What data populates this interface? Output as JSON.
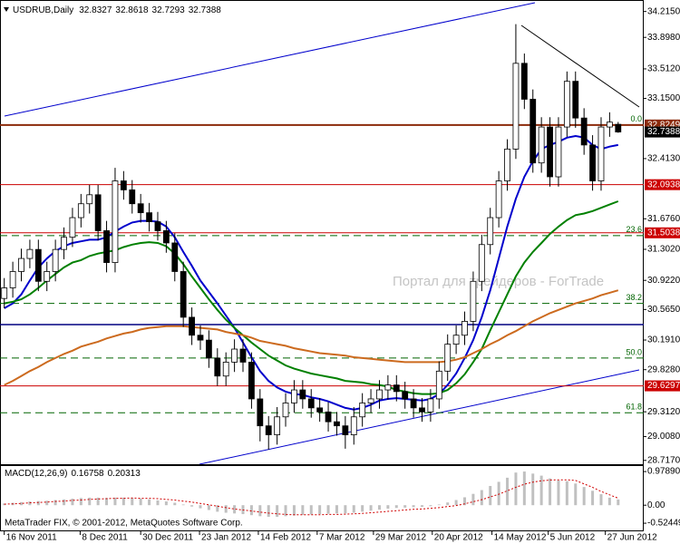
{
  "header": {
    "symbol": "USDRUB,Daily"
  },
  "chart_data": {
    "type": "candlestick",
    "xlim": [
      -0.5,
      75
    ],
    "xticks": [
      {
        "value": 0,
        "label": "16 Nov 2011"
      },
      {
        "value": 8.9,
        "label": "8 Dec 2011"
      },
      {
        "value": 16,
        "label": "30 Dec 2011"
      },
      {
        "value": 22.9,
        "label": "23 Jan 2012"
      },
      {
        "value": 29.8,
        "label": "14 Feb 2012"
      },
      {
        "value": 36.7,
        "label": "7 Mar 2012"
      },
      {
        "value": 43.3,
        "label": "29 Mar 2012"
      },
      {
        "value": 50.2,
        "label": "20 Apr 2012"
      },
      {
        "value": 57.2,
        "label": "14 May 2012"
      },
      {
        "value": 63.8,
        "label": "5 Jun 2012"
      },
      {
        "value": 70.5,
        "label": "27 Jun 2012"
      }
    ],
    "ylim": [
      28.67,
      34.3
    ],
    "yticks": [
      {
        "value": 34.215,
        "label": "34.2150"
      },
      {
        "value": 33.898,
        "label": "33.8980"
      },
      {
        "value": 33.512,
        "label": "33.5120"
      },
      {
        "value": 33.15,
        "label": "33.1500"
      },
      {
        "value": 32.413,
        "label": "32.4130"
      },
      {
        "value": 31.676,
        "label": "31.6760"
      },
      {
        "value": 31.302,
        "label": "31.3020"
      },
      {
        "value": 30.922,
        "label": "30.9220"
      },
      {
        "value": 30.565,
        "label": "30.5650"
      },
      {
        "value": 30.191,
        "label": "30.1910"
      },
      {
        "value": 29.828,
        "label": "29.8280"
      },
      {
        "value": 29.312,
        "label": "29.3120"
      },
      {
        "value": 29.008,
        "label": "29.0080"
      },
      {
        "value": 28.717,
        "label": "28.7170"
      }
    ],
    "up_color": "#ffffff",
    "down_color": "#000000",
    "open": [
      30.7,
      30.83,
      31.03,
      31.19,
      31.3,
      30.91,
      31.03,
      31.3,
      31.45,
      31.69,
      31.86,
      31.97,
      31.53,
      31.14,
      32.14,
      32.03,
      31.86,
      31.75,
      31.64,
      31.53,
      31.38,
      31.03,
      30.47,
      30.25,
      30.19,
      29.97,
      29.75,
      29.92,
      30.08,
      29.92,
      29.47,
      29.14,
      29.03,
      29.25,
      29.42,
      29.58,
      29.47,
      29.36,
      29.31,
      29.19,
      29.14,
      29.03,
      29.25,
      29.42,
      29.47,
      29.58,
      29.64,
      29.56,
      29.47,
      29.36,
      29.31,
      29.47,
      29.81,
      30.14,
      30.25,
      30.42,
      30.91,
      31.36,
      31.69,
      32.14,
      32.53,
      33.58,
      33.14,
      32.36,
      32.8,
      32.19,
      32.8,
      33.36,
      32.91,
      32.58,
      32.14,
      32.8,
      32.8327
    ],
    "high": [
      30.95,
      31.15,
      31.31,
      31.42,
      31.42,
      31.15,
      31.42,
      31.57,
      31.81,
      31.98,
      32.09,
      32.09,
      31.65,
      32.3,
      32.26,
      32.15,
      31.98,
      31.87,
      31.76,
      31.65,
      31.5,
      31.15,
      30.59,
      30.37,
      30.31,
      30.09,
      30.04,
      30.2,
      30.2,
      30.04,
      29.59,
      29.26,
      29.37,
      29.54,
      29.7,
      29.7,
      29.59,
      29.48,
      29.43,
      29.31,
      29.26,
      29.37,
      29.54,
      29.59,
      29.7,
      29.76,
      29.76,
      29.68,
      29.59,
      29.48,
      29.59,
      29.93,
      30.26,
      30.37,
      30.54,
      31.03,
      31.48,
      31.81,
      32.26,
      32.65,
      34.06,
      33.7,
      33.26,
      32.92,
      32.92,
      32.92,
      33.48,
      33.48,
      33.03,
      32.7,
      32.92,
      32.98,
      32.8618
    ],
    "low": [
      30.58,
      30.71,
      30.91,
      31.07,
      30.79,
      30.79,
      30.91,
      31.18,
      31.33,
      31.57,
      31.74,
      31.41,
      31.02,
      31.02,
      31.91,
      31.74,
      31.63,
      31.52,
      31.41,
      31.26,
      30.91,
      30.35,
      30.13,
      30.07,
      29.85,
      29.63,
      29.63,
      29.8,
      29.8,
      29.35,
      28.95,
      28.85,
      28.91,
      29.13,
      29.3,
      29.35,
      29.24,
      29.19,
      29.07,
      29.02,
      28.86,
      28.91,
      29.13,
      29.3,
      29.35,
      29.46,
      29.44,
      29.35,
      29.24,
      29.19,
      29.19,
      29.35,
      29.69,
      30.02,
      30.13,
      30.3,
      30.79,
      31.24,
      31.57,
      32.02,
      32.41,
      33.02,
      32.24,
      32.24,
      32.07,
      32.07,
      32.68,
      32.79,
      32.46,
      32.02,
      32.02,
      32.68,
      32.7293
    ],
    "close": [
      30.83,
      31.03,
      31.19,
      31.3,
      30.91,
      31.03,
      31.3,
      31.45,
      31.69,
      31.86,
      31.97,
      31.53,
      31.14,
      32.14,
      32.03,
      31.86,
      31.75,
      31.64,
      31.53,
      31.38,
      31.03,
      30.47,
      30.25,
      30.19,
      29.97,
      29.75,
      29.92,
      30.08,
      29.92,
      29.47,
      29.14,
      29.03,
      29.25,
      29.42,
      29.58,
      29.47,
      29.36,
      29.31,
      29.19,
      29.14,
      29.03,
      29.25,
      29.42,
      29.47,
      29.58,
      29.64,
      29.56,
      29.47,
      29.36,
      29.31,
      29.47,
      29.81,
      30.14,
      30.25,
      30.42,
      30.91,
      31.36,
      31.69,
      32.14,
      32.53,
      33.58,
      33.14,
      32.36,
      32.8,
      32.19,
      32.8,
      33.36,
      32.91,
      32.58,
      32.14,
      32.8,
      32.86,
      32.7388
    ],
    "series": [
      {
        "color": "#0000cc",
        "values": [
          30.58,
          30.64,
          30.75,
          30.92,
          31.08,
          31.19,
          31.28,
          31.34,
          31.38,
          31.4,
          31.42,
          31.42,
          31.45,
          31.52,
          31.58,
          31.63,
          31.65,
          31.65,
          31.64,
          31.58,
          31.45,
          31.27,
          31.1,
          30.92,
          30.78,
          30.64,
          30.49,
          30.34,
          30.16,
          29.98,
          29.81,
          29.69,
          29.61,
          29.56,
          29.53,
          29.52,
          29.49,
          29.47,
          29.44,
          29.4,
          29.36,
          29.34,
          29.36,
          29.4,
          29.45,
          29.47,
          29.48,
          29.47,
          29.46,
          29.45,
          29.47,
          29.53,
          29.64,
          29.78,
          29.97,
          30.19,
          30.47,
          30.8,
          31.19,
          31.58,
          31.92,
          32.19,
          32.38,
          32.53,
          32.58,
          32.62,
          32.67,
          32.69,
          32.67,
          32.58,
          32.53,
          32.56,
          32.58
        ]
      },
      {
        "color": "#008000",
        "values": [
          30.64,
          30.66,
          30.69,
          30.75,
          30.83,
          30.92,
          31.0,
          31.08,
          31.14,
          31.17,
          31.22,
          31.25,
          31.27,
          31.29,
          31.33,
          31.36,
          31.38,
          31.39,
          31.38,
          31.34,
          31.25,
          31.12,
          30.97,
          30.83,
          30.69,
          30.56,
          30.44,
          30.34,
          30.25,
          30.16,
          30.08,
          30.0,
          29.94,
          29.88,
          29.84,
          29.81,
          29.78,
          29.76,
          29.74,
          29.72,
          29.69,
          29.68,
          29.67,
          29.65,
          29.64,
          29.62,
          29.58,
          29.56,
          29.54,
          29.53,
          29.53,
          29.54,
          29.58,
          29.66,
          29.77,
          29.92,
          30.08,
          30.31,
          30.53,
          30.75,
          30.97,
          31.14,
          31.27,
          31.38,
          31.49,
          31.58,
          31.66,
          31.72,
          31.74,
          31.77,
          31.81,
          31.85,
          31.89
        ]
      },
      {
        "color": "#cc6a1e",
        "values": [
          29.64,
          29.69,
          29.75,
          29.81,
          29.86,
          29.92,
          29.97,
          30.02,
          30.06,
          30.11,
          30.14,
          30.17,
          30.21,
          30.24,
          30.27,
          30.29,
          30.32,
          30.34,
          30.35,
          30.36,
          30.36,
          30.36,
          30.35,
          30.34,
          30.33,
          30.32,
          30.29,
          30.27,
          30.25,
          30.22,
          30.18,
          30.16,
          30.14,
          30.12,
          30.09,
          30.07,
          30.05,
          30.03,
          30.02,
          30.01,
          30.0,
          29.98,
          29.97,
          29.96,
          29.95,
          29.94,
          29.93,
          29.92,
          29.92,
          29.92,
          29.92,
          29.92,
          29.93,
          29.95,
          29.98,
          30.03,
          30.08,
          30.14,
          30.19,
          30.25,
          30.3,
          30.36,
          30.42,
          30.47,
          30.52,
          30.56,
          30.6,
          30.64,
          30.67,
          30.7,
          30.74,
          30.77,
          30.8
        ]
      }
    ],
    "levels": [
      {
        "value": 32.8249,
        "color": "#8b2a0a"
      },
      {
        "value": 32.0938,
        "color": "#cc0000"
      },
      {
        "value": 31.5038,
        "color": "#cc0000"
      },
      {
        "value": 29.6297,
        "color": "#cc0000"
      }
    ],
    "support": {
      "value": 30.38,
      "color": "#000080"
    },
    "fib": [
      {
        "label": "0.0",
        "value": 32.8249
      },
      {
        "label": "23.6",
        "value": 31.47
      },
      {
        "label": "38.2",
        "value": 30.64
      },
      {
        "label": "50.0",
        "value": 29.97
      },
      {
        "label": "61.8",
        "value": 29.3
      }
    ],
    "fib_color": "#006400",
    "watermark": "Портал для трейдеров - ForTrade",
    "macd": {
      "title": "MACD(12,26,9)",
      "ylim": [
        -0.76,
        1.14
      ],
      "yticks": [
        {
          "value": 0.9789,
          "label": "0.97890"
        },
        {
          "value": 0,
          "label": "0.00"
        },
        {
          "value": -0.52449,
          "label": "-0.52449"
        }
      ],
      "hist_color": "#c0c0c0",
      "signal_color": "#d00000",
      "hist": [
        0.05,
        0.07,
        0.09,
        0.11,
        0.12,
        0.13,
        0.15,
        0.17,
        0.19,
        0.21,
        0.22,
        0.22,
        0.21,
        0.22,
        0.22,
        0.21,
        0.19,
        0.17,
        0.14,
        0.11,
        0.07,
        0.02,
        -0.04,
        -0.09,
        -0.14,
        -0.19,
        -0.22,
        -0.24,
        -0.26,
        -0.29,
        -0.32,
        -0.34,
        -0.34,
        -0.32,
        -0.3,
        -0.28,
        -0.27,
        -0.26,
        -0.25,
        -0.24,
        -0.24,
        -0.22,
        -0.19,
        -0.16,
        -0.13,
        -0.1,
        -0.08,
        -0.07,
        -0.06,
        -0.05,
        -0.03,
        0.02,
        0.08,
        0.15,
        0.23,
        0.33,
        0.44,
        0.56,
        0.68,
        0.8,
        0.95,
        0.98,
        0.92,
        0.86,
        0.78,
        0.72,
        0.7,
        0.63,
        0.53,
        0.42,
        0.32,
        0.22,
        0.16758
      ],
      "signal": [
        0.03,
        0.04,
        0.05,
        0.07,
        0.08,
        0.09,
        0.11,
        0.12,
        0.14,
        0.15,
        0.17,
        0.18,
        0.19,
        0.2,
        0.2,
        0.21,
        0.2,
        0.2,
        0.19,
        0.17,
        0.15,
        0.12,
        0.09,
        0.05,
        0.01,
        -0.03,
        -0.07,
        -0.11,
        -0.14,
        -0.17,
        -0.2,
        -0.23,
        -0.25,
        -0.27,
        -0.28,
        -0.28,
        -0.28,
        -0.28,
        -0.27,
        -0.27,
        -0.26,
        -0.25,
        -0.24,
        -0.22,
        -0.2,
        -0.18,
        -0.16,
        -0.14,
        -0.12,
        -0.11,
        -0.09,
        -0.07,
        -0.04,
        -0.01,
        0.04,
        0.1,
        0.16,
        0.24,
        0.32,
        0.42,
        0.52,
        0.61,
        0.67,
        0.71,
        0.73,
        0.74,
        0.74,
        0.72,
        0.62,
        0.52,
        0.4,
        0.3,
        0.20313
      ]
    }
  },
  "footer": "MetaTrader FIX, © 2001-2012, MetaQuotes Software Corp."
}
